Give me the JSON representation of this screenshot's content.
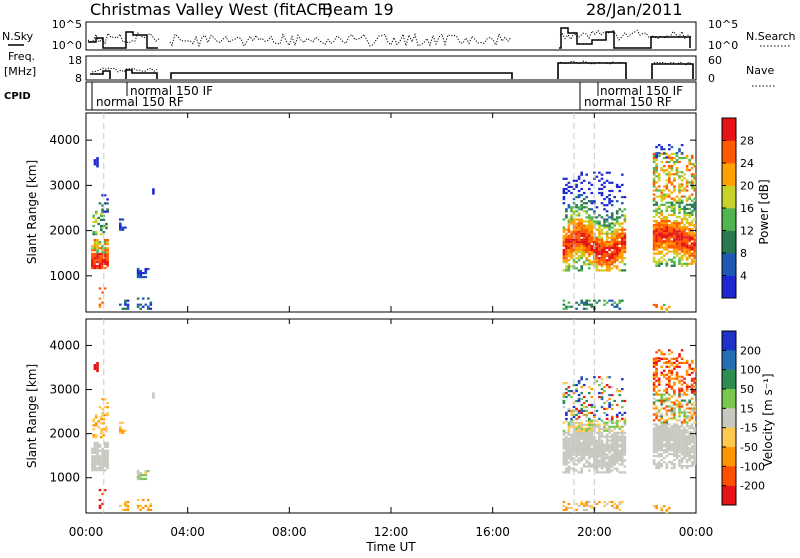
{
  "header": {
    "station": "Christmas Valley West (fitACF)",
    "beam": "Beam 19",
    "date": "28/Jan/2011"
  },
  "top_panels": {
    "nsky_label": "N.Sky",
    "nsky_ticks": [
      "10^5",
      "10^0"
    ],
    "nsky_right_ticks": [
      "10^5",
      "10^0"
    ],
    "nsearch_label": "N.Search",
    "freq_label_1": "Freq.",
    "freq_label_2": "[MHz]",
    "freq_ticks": [
      "18",
      "8"
    ],
    "nave_ticks": [
      "60",
      "0"
    ],
    "nave_label": "Nave",
    "cpid_label": "CPID",
    "cpid_annotations": [
      "normal 150 IF",
      "normal 150 RF",
      "normal 150 IF",
      "normal 150 RF"
    ]
  },
  "colors": {
    "panel_border": "#000000",
    "dashed_line": "#c8c8c8",
    "ground_scatter": "#c8c8c0"
  },
  "chart_data": [
    {
      "type": "heatmap",
      "name": "Power",
      "ylabel": "Slant Range [km]",
      "yticks": [
        1000,
        2000,
        3000,
        4000
      ],
      "ylim": [
        200,
        4600
      ],
      "colorbar_label": "Power [dB]",
      "colorbar_ticks": [
        "4",
        "8",
        "12",
        "16",
        "20",
        "24",
        "28"
      ],
      "colorbar_colors": [
        "#1e28d2",
        "#1e5ab4",
        "#287850",
        "#50b450",
        "#c8d228",
        "#ffa000",
        "#ff5a00",
        "#e61414"
      ]
    },
    {
      "type": "heatmap",
      "name": "Velocity",
      "ylabel": "Slant Range [km]",
      "yticks": [
        1000,
        2000,
        3000,
        4000
      ],
      "ylim": [
        200,
        4600
      ],
      "xlabel": "Time UT",
      "xticks": [
        "00:00",
        "04:00",
        "08:00",
        "12:00",
        "16:00",
        "20:00",
        "00:00"
      ],
      "colorbar_label": "Velocity [m s⁻¹]",
      "colorbar_ticks": [
        "200",
        "100",
        "50",
        "15",
        "-15",
        "-50",
        "-100",
        "-200"
      ],
      "colorbar_colors": [
        "#1e32c8",
        "#286eb4",
        "#2d8c50",
        "#78c850",
        "#c8c8c0",
        "#ffc850",
        "#ff9600",
        "#ff5000",
        "#e61414"
      ]
    }
  ]
}
